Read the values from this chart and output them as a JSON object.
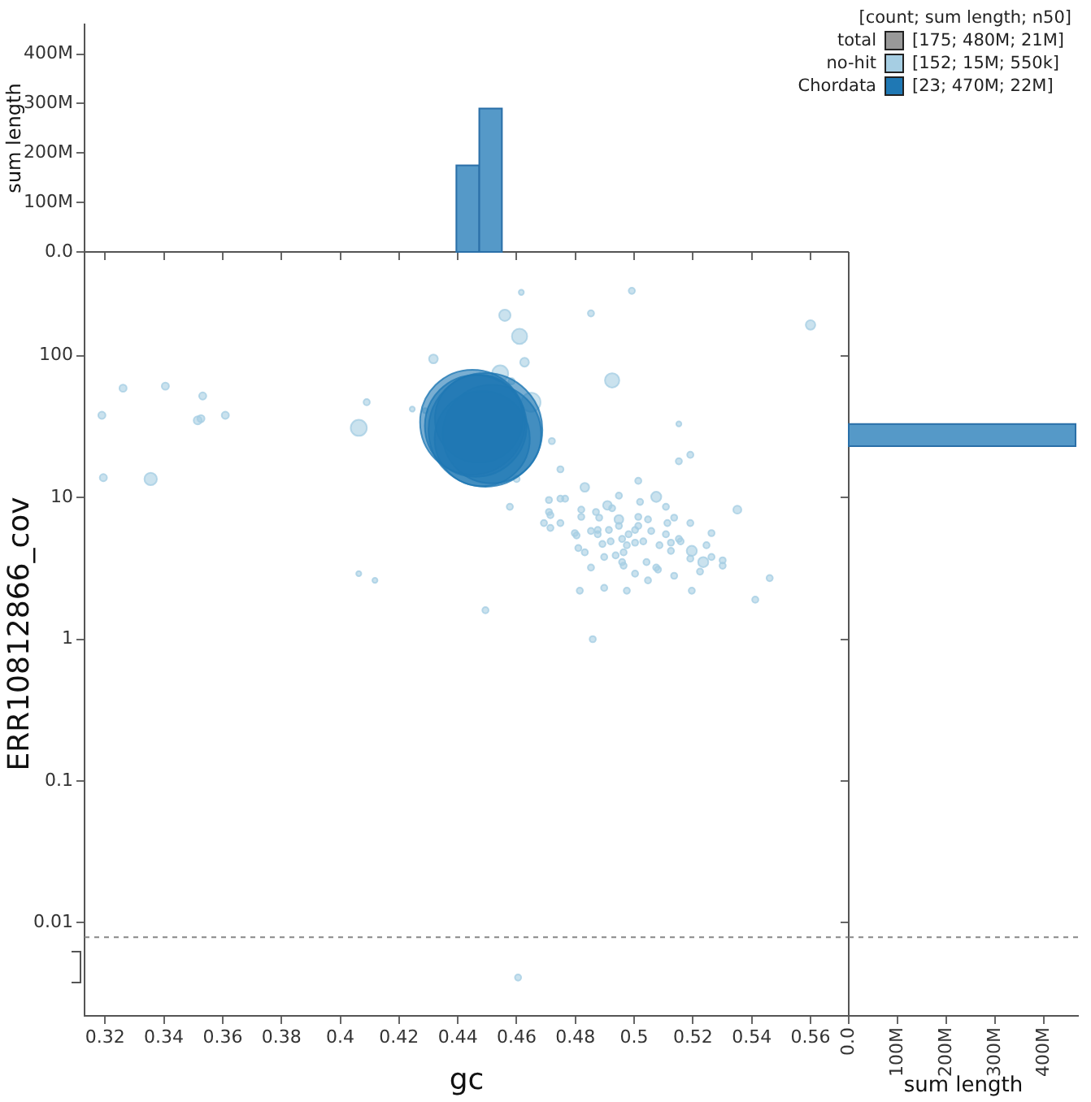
{
  "chart_data": [
    {
      "type": "bubble",
      "xlabel": "gc",
      "ylabel": "ERR10812866_cov",
      "xlim": [
        0.313,
        0.573
      ],
      "xticks": [
        0.32,
        0.34,
        0.36,
        0.38,
        0.4,
        0.42,
        0.44,
        0.46,
        0.48,
        0.5,
        0.52,
        0.54,
        0.56
      ],
      "ylim": [
        0.0022,
        540
      ],
      "yticks": [
        0.01,
        0.1,
        1,
        10,
        100
      ],
      "log": "y",
      "legend": "top right",
      "legend_title": "[count; sum length; n50]",
      "annotations": [
        "[175; 480M; 21M]",
        "[152; 15M; 550k]",
        "[23; 470M; 22M]"
      ],
      "ref_lines": [
        {
          "axis": "y",
          "value": 0.0079,
          "color": "#888888",
          "line_style": "dashed"
        }
      ],
      "series": [
        {
          "name": "total",
          "color": "#999999"
        },
        {
          "name": "no-hit",
          "color": "#a6cee3",
          "x": [
            0.3261,
            0.3405,
            0.3532,
            0.3189,
            0.3515,
            0.3526,
            0.3609,
            0.3194,
            0.3355,
            0.409,
            0.4063,
            0.4063,
            0.4118,
            0.4616,
            0.4992,
            0.456,
            0.4853,
            0.56,
            0.461,
            0.4317,
            0.4627,
            0.4544,
            0.4583,
            0.4925,
            0.4649,
            0.4245,
            0.4289,
            0.5152,
            0.472,
            0.4749,
            0.46,
            0.4832,
            0.5014,
            0.5152,
            0.5191,
            0.471,
            0.4749,
            0.4765,
            0.4577,
            0.4909,
            0.4948,
            0.502,
            0.5075,
            0.5108,
            0.5351,
            0.471,
            0.482,
            0.4925,
            0.4693,
            0.4715,
            0.482,
            0.487,
            0.4881,
            0.4948,
            0.5014,
            0.5047,
            0.5136,
            0.4749,
            0.4715,
            0.4853,
            0.4876,
            0.4914,
            0.4948,
            0.5003,
            0.5014,
            0.5058,
            0.5113,
            0.5191,
            0.5263,
            0.4798,
            0.4804,
            0.4876,
            0.492,
            0.4959,
            0.4981,
            0.5031,
            0.5108,
            0.5152,
            0.4892,
            0.4975,
            0.5003,
            0.5086,
            0.5125,
            0.5158,
            0.5246,
            0.481,
            0.4832,
            0.4964,
            0.5125,
            0.5196,
            0.4898,
            0.4937,
            0.5042,
            0.4959,
            0.5191,
            0.5235,
            0.5263,
            0.5301,
            0.5301,
            0.4964,
            0.4853,
            0.5075,
            0.5081,
            0.5003,
            0.5136,
            0.5224,
            0.5047,
            0.4815,
            0.4898,
            0.4975,
            0.5196,
            0.5461,
            0.5412,
            0.4859,
            0.4494,
            0.4605
          ],
          "values": [
            59,
            61,
            52,
            38,
            35,
            36,
            38,
            13.8,
            13.5,
            47,
            31,
            2.9,
            2.6,
            280,
            287,
            193,
            199,
            165,
            137,
            95,
            90,
            75,
            66,
            67,
            47,
            42,
            41,
            33,
            25,
            15.8,
            13.5,
            11.8,
            13.1,
            18,
            20,
            9.6,
            9.8,
            9.8,
            8.6,
            8.8,
            10.3,
            9.3,
            10.1,
            8.6,
            8.2,
            7.9,
            8.2,
            8.4,
            6.6,
            7.5,
            7.3,
            7.9,
            7.2,
            7.0,
            7.3,
            7.0,
            7.2,
            6.6,
            6.1,
            5.8,
            5.9,
            5.9,
            6.3,
            5.9,
            6.3,
            5.8,
            6.6,
            6.6,
            5.6,
            5.6,
            5.4,
            5.5,
            4.9,
            5.1,
            5.5,
            4.9,
            5.5,
            5.1,
            4.7,
            4.6,
            4.8,
            4.6,
            4.8,
            4.9,
            4.6,
            4.4,
            4.1,
            4.1,
            4.2,
            4.2,
            3.8,
            3.9,
            3.5,
            3.5,
            3.7,
            3.5,
            3.8,
            3.6,
            3.3,
            3.3,
            3.2,
            3.2,
            3.1,
            2.9,
            2.8,
            3.0,
            2.6,
            2.2,
            2.3,
            2.2,
            2.2,
            2.7,
            1.9,
            1.0,
            1.6,
            0.0041
          ],
          "sizes": [
            0.004,
            0.004,
            0.004,
            0.004,
            0.005,
            0.004,
            0.004,
            0.004,
            0.012,
            0.003,
            0.02,
            0.002,
            0.002,
            0.002,
            0.003,
            0.01,
            0.003,
            0.007,
            0.018,
            0.006,
            0.006,
            0.02,
            0.003,
            0.016,
            0.028,
            0.002,
            0.002,
            0.002,
            0.003,
            0.003,
            0.003,
            0.006,
            0.003,
            0.003,
            0.003,
            0.003,
            0.003,
            0.003,
            0.003,
            0.006,
            0.003,
            0.003,
            0.008,
            0.003,
            0.005,
            0.003,
            0.003,
            0.003,
            0.003,
            0.003,
            0.003,
            0.003,
            0.003,
            0.006,
            0.003,
            0.003,
            0.003,
            0.003,
            0.003,
            0.003,
            0.003,
            0.003,
            0.003,
            0.003,
            0.003,
            0.003,
            0.003,
            0.003,
            0.003,
            0.003,
            0.003,
            0.003,
            0.003,
            0.003,
            0.003,
            0.003,
            0.003,
            0.003,
            0.003,
            0.003,
            0.003,
            0.003,
            0.003,
            0.003,
            0.003,
            0.003,
            0.003,
            0.003,
            0.003,
            0.008,
            0.003,
            0.003,
            0.003,
            0.003,
            0.003,
            0.008,
            0.003,
            0.003,
            0.003,
            0.003,
            0.003,
            0.003,
            0.003,
            0.003,
            0.003,
            0.003,
            0.003,
            0.003,
            0.003,
            0.003,
            0.003,
            0.003,
            0.003,
            0.003,
            0.003,
            0.003
          ]
        },
        {
          "name": "Chordata",
          "color": "#1f78b4",
          "x": [
            0.445,
            0.4494,
            0.4516,
            0.4472,
            0.4483,
            0.4461
          ],
          "values": [
            34,
            30,
            28,
            36,
            26,
            32
          ],
          "sizes": [
            0.85,
            1,
            0.75,
            0.6,
            0.7,
            0.8
          ]
        }
      ]
    },
    {
      "type": "histogram",
      "ylabel": "sum length",
      "bins": [
        0.4395,
        0.4473,
        0.455
      ],
      "values": [
        175000000,
        290000000
      ],
      "color": "#5599c8",
      "xlim": [
        0.313,
        0.573
      ],
      "xticks": [
        0.32,
        0.34,
        0.36,
        0.38,
        0.4,
        0.42,
        0.44,
        0.46,
        0.48,
        0.5,
        0.52,
        0.54,
        0.56
      ],
      "ylim": [
        0,
        460000000
      ],
      "yticks": [
        {
          "value": 0,
          "label": "0.0"
        },
        {
          "value": 100000000,
          "label": "100M"
        },
        {
          "value": 200000000,
          "label": "200M"
        },
        {
          "value": 300000000,
          "label": "300M"
        },
        {
          "value": 400000000,
          "label": "400M"
        }
      ],
      "tick_labels": "y"
    },
    {
      "type": "histogram",
      "orientation": "horizontal",
      "xlabel": "sum length",
      "bins": [
        23,
        33
      ],
      "values": [
        465000000
      ],
      "color": "#5599c8",
      "ylim": [
        0.0022,
        540
      ],
      "yticks": [
        0.01,
        0.1,
        1,
        10,
        100
      ],
      "log": "y",
      "xlim": [
        0,
        470000000
      ],
      "xticks": [
        {
          "value": 0,
          "label": "0.0"
        },
        {
          "value": 100000000,
          "label": "100M"
        },
        {
          "value": 200000000,
          "label": "200M"
        },
        {
          "value": 300000000,
          "label": "300M"
        },
        {
          "value": 400000000,
          "label": "400M"
        }
      ],
      "tick_labels": "x",
      "ref_lines": [
        {
          "axis": "y",
          "value": 0.0079,
          "color": "#888888",
          "line_style": "dashed"
        }
      ]
    }
  ]
}
